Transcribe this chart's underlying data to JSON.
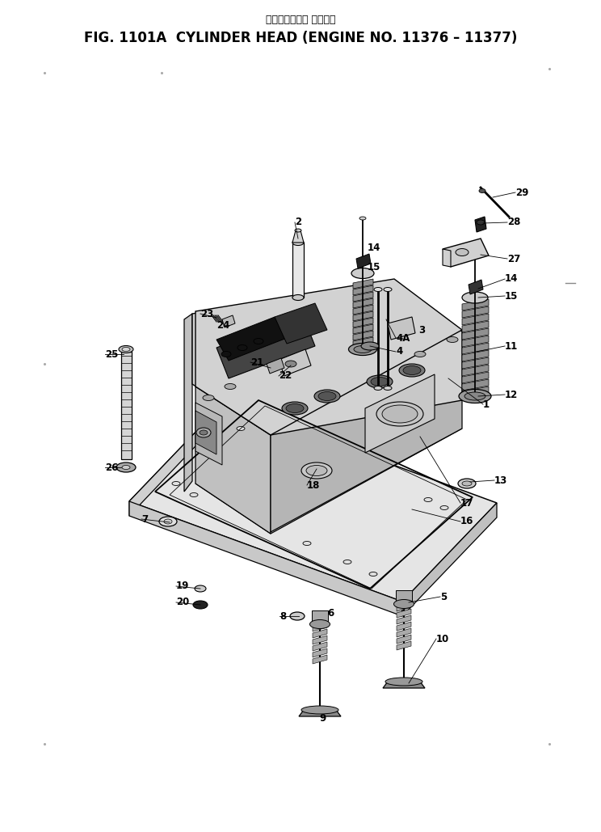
{
  "title_japanese": "シリンダヘッド 適用号機",
  "title_english": "FIG. 1101A  CYLINDER HEAD (ENGINE NO. 11376 – 11377)",
  "bg_color": "#ffffff",
  "fig_width": 7.44,
  "fig_height": 10.29,
  "dpi": 100
}
